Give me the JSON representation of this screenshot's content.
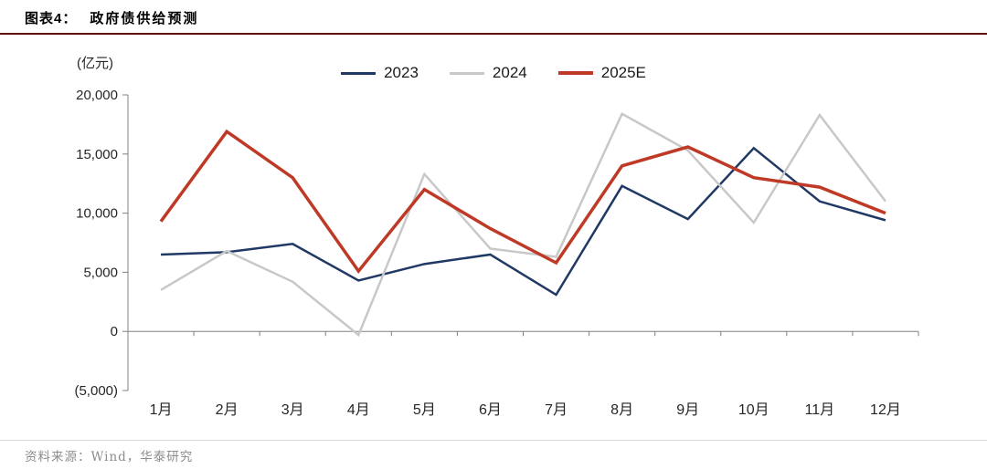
{
  "header": {
    "label": "图表4：",
    "title": "政府债供给预测"
  },
  "footer": {
    "text": "资料来源：Wind，华泰研究"
  },
  "colors": {
    "title_rule": "#5E100C",
    "axis_line": "#808080",
    "axis_text": "#262626",
    "footer_rule": "#D9D9D9",
    "footer_text": "#8C8C8C",
    "series_2023": "#1F3864",
    "series_2024": "#C8C8C8",
    "series_2025e": "#BE3A26"
  },
  "chart_data": {
    "type": "line",
    "title": "政府债供给预测",
    "unit_label": "(亿元)",
    "categories": [
      "1月",
      "2月",
      "3月",
      "4月",
      "5月",
      "6月",
      "7月",
      "8月",
      "9月",
      "10月",
      "11月",
      "12月"
    ],
    "series": [
      {
        "name": "2023",
        "color": "#1F3864",
        "line_width": 2.5,
        "values": [
          6500,
          6700,
          7400,
          4300,
          5700,
          6500,
          3100,
          12300,
          9500,
          15500,
          11000,
          9400
        ]
      },
      {
        "name": "2024",
        "color": "#C8C8C8",
        "line_width": 2.5,
        "values": [
          3500,
          6800,
          4200,
          -300,
          13300,
          7000,
          6300,
          18400,
          15300,
          9200,
          18300,
          11000
        ]
      },
      {
        "name": "2025E",
        "color": "#BE3A26",
        "line_width": 3.5,
        "values": [
          9300,
          16900,
          13000,
          5100,
          12000,
          8700,
          5800,
          14000,
          15600,
          13000,
          12200,
          10000
        ]
      }
    ],
    "ylim": [
      -5000,
      20000
    ],
    "ytick_step": 5000,
    "ytick_labels": [
      "(5,000)",
      "0",
      "5,000",
      "10,000",
      "15,000",
      "20,000"
    ],
    "grid": false,
    "legend_position": "top-center"
  }
}
